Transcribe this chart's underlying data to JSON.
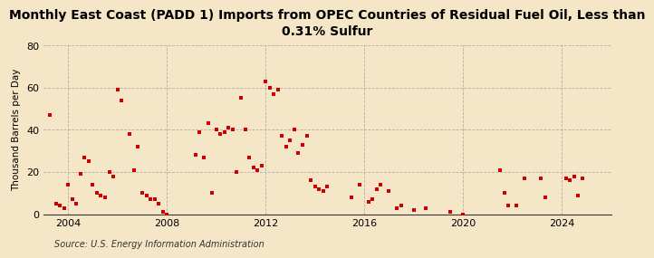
{
  "title": "Monthly East Coast (PADD 1) Imports from OPEC Countries of Residual Fuel Oil, Less than\n0.31% Sulfur",
  "ylabel": "Thousand Barrels per Day",
  "source": "Source: U.S. Energy Information Administration",
  "marker_color": "#cc0000",
  "background_color": "#f5e6c8",
  "ylim": [
    0,
    80
  ],
  "yticks": [
    0,
    20,
    40,
    60,
    80
  ],
  "xlim": [
    2003.0,
    2026.0
  ],
  "xticks": [
    2004,
    2008,
    2012,
    2016,
    2020,
    2024
  ],
  "data_x": [
    2003.25,
    2003.5,
    2003.67,
    2003.83,
    2004.0,
    2004.17,
    2004.33,
    2004.5,
    2004.67,
    2004.83,
    2005.0,
    2005.17,
    2005.33,
    2005.5,
    2005.67,
    2005.83,
    2006.0,
    2006.17,
    2006.5,
    2006.67,
    2006.83,
    2007.0,
    2007.17,
    2007.33,
    2007.5,
    2007.67,
    2007.83,
    2008.0,
    2009.17,
    2009.33,
    2009.5,
    2009.67,
    2009.83,
    2010.0,
    2010.17,
    2010.33,
    2010.5,
    2010.67,
    2010.83,
    2011.0,
    2011.17,
    2011.33,
    2011.5,
    2011.67,
    2011.83,
    2012.0,
    2012.17,
    2012.33,
    2012.5,
    2012.67,
    2012.83,
    2013.0,
    2013.17,
    2013.33,
    2013.5,
    2013.67,
    2013.83,
    2014.0,
    2014.17,
    2014.33,
    2014.5,
    2015.5,
    2015.83,
    2016.17,
    2016.33,
    2016.5,
    2016.67,
    2017.0,
    2017.33,
    2017.5,
    2018.0,
    2018.5,
    2019.5,
    2020.0,
    2021.5,
    2021.67,
    2021.83,
    2022.17,
    2022.5,
    2023.17,
    2023.33,
    2024.17,
    2024.33,
    2024.5,
    2024.67,
    2024.83
  ],
  "data_y": [
    47,
    5,
    4,
    3,
    14,
    7,
    5,
    19,
    27,
    25,
    14,
    10,
    9,
    8,
    20,
    18,
    59,
    54,
    38,
    21,
    32,
    10,
    9,
    7,
    7,
    5,
    1,
    0,
    28,
    39,
    27,
    43,
    10,
    40,
    38,
    39,
    41,
    40,
    20,
    55,
    40,
    27,
    22,
    21,
    23,
    63,
    60,
    57,
    59,
    37,
    32,
    35,
    40,
    29,
    33,
    37,
    16,
    13,
    12,
    11,
    13,
    8,
    14,
    6,
    7,
    12,
    14,
    11,
    3,
    4,
    2,
    3,
    1,
    0,
    21,
    10,
    4,
    4,
    17,
    17,
    8,
    17,
    16,
    18,
    9,
    17
  ]
}
